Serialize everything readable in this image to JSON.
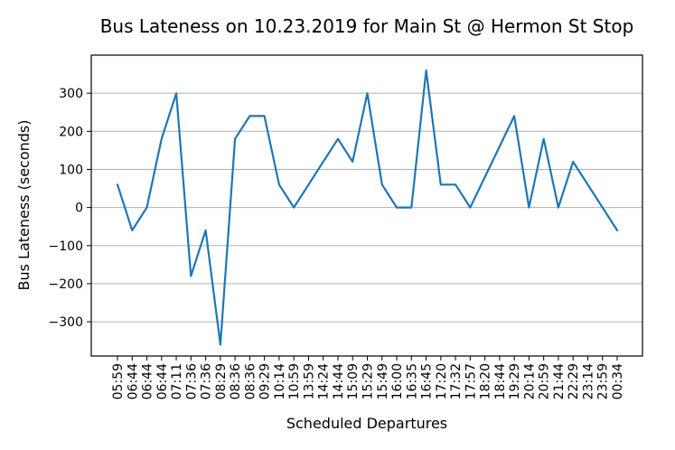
{
  "chart_data": {
    "type": "line",
    "title": "Bus Lateness on 10.23.2019 for Main St @ Hermon St Stop",
    "xlabel": "Scheduled Departures",
    "ylabel": "Bus Lateness (seconds)",
    "ylim": [
      -390,
      400
    ],
    "yticks": [
      -300,
      -200,
      -100,
      0,
      100,
      200,
      300
    ],
    "ytick_labels": [
      "−300",
      "−200",
      "−100",
      "0",
      "100",
      "200",
      "300"
    ],
    "grid": "horizontal",
    "color": "#1f77b4",
    "categories": [
      "05:59",
      "06:44",
      "06:44",
      "06:44",
      "07:11",
      "07:36",
      "07:36",
      "08:29",
      "08:36",
      "08:36",
      "09:29",
      "10:14",
      "10:59",
      "13:59",
      "14:24",
      "14:44",
      "15:09",
      "15:29",
      "15:49",
      "16:00",
      "16:35",
      "16:45",
      "17:20",
      "17:32",
      "17:57",
      "18:20",
      "18:44",
      "19:29",
      "20:14",
      "20:59",
      "21:44",
      "22:29",
      "23:14",
      "23:59",
      "00:34"
    ],
    "values": [
      60,
      -60,
      0,
      180,
      300,
      -180,
      -60,
      -360,
      180,
      240,
      240,
      60,
      0,
      null,
      null,
      180,
      120,
      300,
      60,
      0,
      0,
      360,
      60,
      60,
      0,
      null,
      null,
      240,
      0,
      180,
      0,
      120,
      null,
      null,
      -60
    ]
  }
}
